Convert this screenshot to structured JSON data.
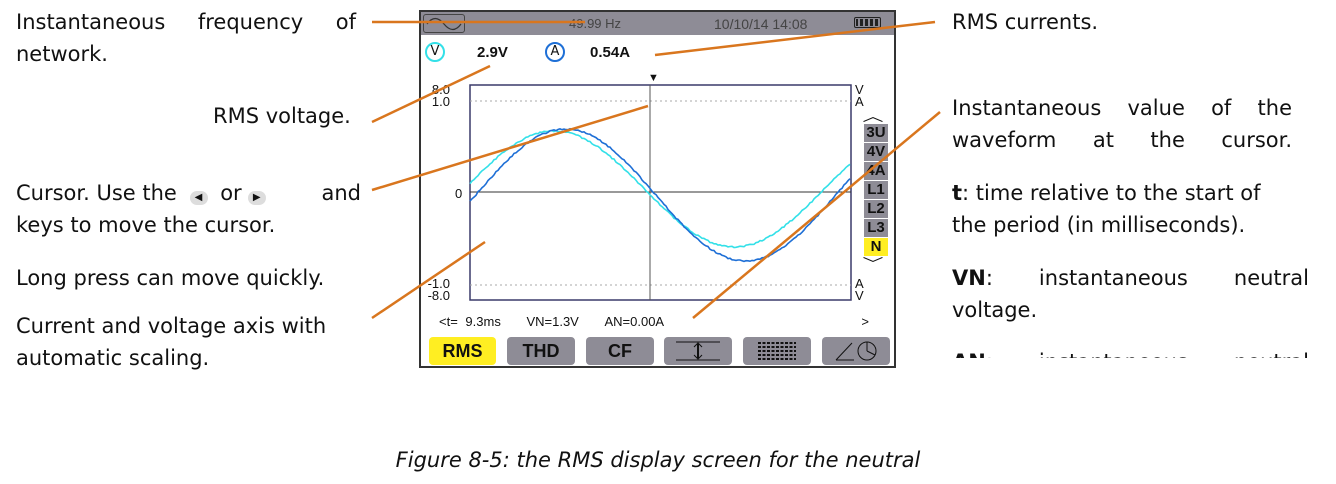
{
  "annotations": {
    "frequency": "Instantaneous frequency of network.",
    "rms_voltage": "RMS voltage.",
    "cursor_a": "Cursor. Use the",
    "cursor_or": "or",
    "cursor_and": "and",
    "cursor_b": "keys to move the cursor.",
    "long_press": "Long press can move quickly.",
    "axis": "Current and voltage axis with automatic scaling.",
    "rms_currents": "RMS currents.",
    "inst_value": "Instantaneous value of the waveform at the cursor.",
    "t_label": "t",
    "t_desc": ": time relative to the start of the period (in milliseconds).",
    "vn_label": "VN",
    "vn_desc": ": instantaneous neutral voltage.",
    "an_label": "AN",
    "an_desc": ": instantaneous neutral"
  },
  "screen": {
    "frequency": "49.99 Hz",
    "datetime": "10/10/14  14:08",
    "v_icon": "V",
    "a_icon": "A",
    "rms_v": "2.9V",
    "rms_a": "0.54A",
    "y_top_v": "8.0",
    "y_top_a": "1.0",
    "y_zero": "0",
    "y_bot_a": "-1.0",
    "y_bot_v": "-8.0",
    "unit_top_v": "V",
    "unit_top_a": "A",
    "unit_bot_a": "A",
    "unit_bot_v": "V",
    "channels": [
      "3U",
      "4V",
      "4A",
      "L1",
      "L2",
      "L3",
      "N"
    ],
    "selected_channel": "N",
    "cursor_readout": {
      "t_prefix": "<t=",
      "t": "9.3ms",
      "vn": "VN=1.3V",
      "an": "AN=0.00A",
      "next": ">"
    },
    "buttons": [
      "RMS",
      "THD",
      "CF"
    ],
    "active_button": "RMS",
    "colors": {
      "voltage": "#33e0e8",
      "current": "#1e6fd6",
      "highlight": "#ffee22",
      "annotation": "#d9761e"
    }
  },
  "caption": "Figure 8-5: the RMS display screen for the neutral"
}
